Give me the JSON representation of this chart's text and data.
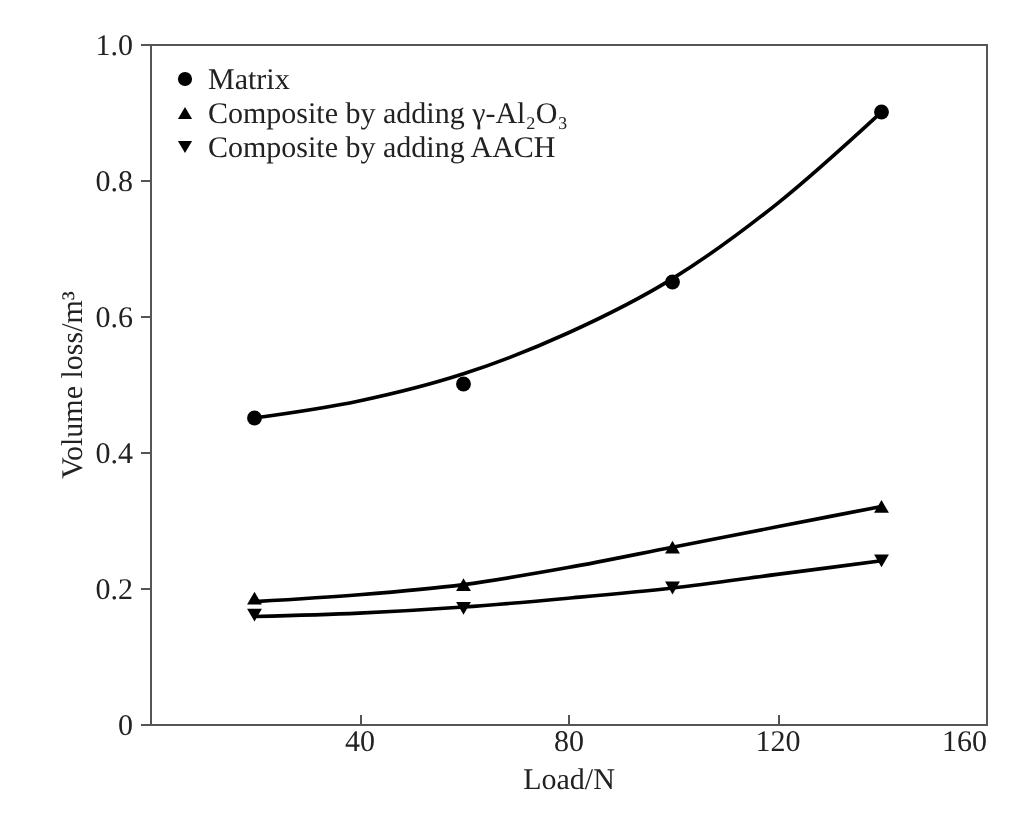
{
  "chart_data": {
    "type": "scatter",
    "xlabel": "Load/N",
    "ylabel": "Volume loss/m³",
    "x": [
      20,
      60,
      100,
      140
    ],
    "xlim": [
      0,
      160
    ],
    "xticks": [
      40,
      80,
      120,
      160
    ],
    "ylim": [
      0,
      1.0
    ],
    "yticks": [
      0,
      0.2,
      0.4,
      0.6,
      0.8,
      {
        "value": 1.0,
        "label": "1.0"
      }
    ],
    "grid": false,
    "legend": "top left",
    "series": [
      {
        "name": "Matrix",
        "marker": "circle",
        "color": "#000000",
        "values": [
          0.45,
          0.5,
          0.65,
          0.9
        ]
      },
      {
        "name": "Composite by adding γ-Al₂O₃",
        "marker": "triangle",
        "color": "#000000",
        "values": [
          0.185,
          0.205,
          0.26,
          0.32
        ]
      },
      {
        "name": "Composite by adding AACH",
        "marker": "triangle-down",
        "color": "#000000",
        "values": [
          0.16,
          0.17,
          0.2,
          0.24
        ]
      },
      {
        "type": "line",
        "color": "#000000",
        "x": [
          20,
          40,
          60,
          80,
          100,
          120,
          140
        ],
        "values": [
          0.45,
          0.475,
          0.515,
          0.575,
          0.655,
          0.765,
          0.9
        ]
      },
      {
        "type": "line",
        "color": "#000000",
        "x": [
          20,
          40,
          60,
          80,
          100,
          120,
          140
        ],
        "values": [
          0.18,
          0.19,
          0.205,
          0.23,
          0.26,
          0.29,
          0.32
        ]
      },
      {
        "type": "line",
        "color": "#000000",
        "x": [
          20,
          40,
          60,
          80,
          100,
          120,
          140
        ],
        "values": [
          0.158,
          0.163,
          0.172,
          0.185,
          0.2,
          0.22,
          0.24
        ]
      }
    ]
  }
}
